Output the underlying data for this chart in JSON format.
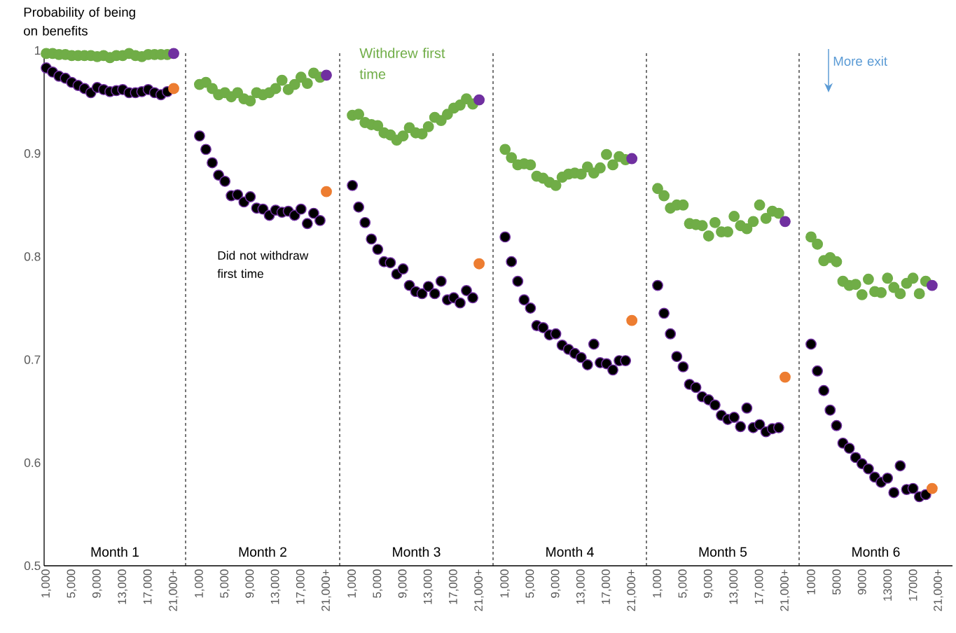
{
  "chart_data": [
    {
      "type": "scatter",
      "title": "Month 1",
      "ylabel": "Probability of being on benefits",
      "marker": "circle",
      "categories": [
        "1,000",
        null,
        null,
        null,
        "5,000",
        null,
        null,
        null,
        "9,000",
        null,
        null,
        null,
        "13,000",
        null,
        null,
        null,
        "17,000",
        null,
        null,
        null,
        "21,000+"
      ],
      "ylim": [
        0.5,
        1
      ],
      "yticks": [
        0.5,
        0.6,
        0.7,
        0.8,
        0.9,
        1
      ],
      "series": [
        {
          "values": [
            0.997,
            0.997,
            0.996,
            0.996,
            0.995,
            0.995,
            0.995,
            0.995,
            0.994,
            0.995,
            0.993,
            0.995,
            0.995,
            0.997,
            0.995,
            0.994,
            0.996,
            0.996,
            0.996,
            0.996,
            0.997
          ],
          "colors": [
            "#70ad47",
            "#70ad47",
            "#70ad47",
            "#70ad47",
            "#70ad47",
            "#70ad47",
            "#70ad47",
            "#70ad47",
            "#70ad47",
            "#70ad47",
            "#70ad47",
            "#70ad47",
            "#70ad47",
            "#70ad47",
            "#70ad47",
            "#70ad47",
            "#70ad47",
            "#70ad47",
            "#70ad47",
            "#70ad47",
            "#7030a0"
          ]
        },
        {
          "values": [
            0.983,
            0.979,
            0.975,
            0.973,
            0.969,
            0.966,
            0.963,
            0.959,
            0.964,
            0.962,
            0.96,
            0.961,
            0.962,
            0.959,
            0.959,
            0.96,
            0.962,
            0.959,
            0.957,
            0.96,
            0.963
          ],
          "colors": [
            "#000000",
            "#000000",
            "#000000",
            "#000000",
            "#000000",
            "#000000",
            "#000000",
            "#000000",
            "#000000",
            "#000000",
            "#000000",
            "#000000",
            "#000000",
            "#000000",
            "#000000",
            "#000000",
            "#000000",
            "#000000",
            "#000000",
            "#000000",
            "#ed7d31"
          ]
        }
      ]
    },
    {
      "type": "scatter",
      "title": "Month 2",
      "marker": "circle",
      "tick_labels": "x",
      "annotations": [
        "Did not withdraw first time"
      ],
      "categories": [
        "1,000",
        null,
        null,
        null,
        "5,000",
        null,
        null,
        null,
        "9,000",
        null,
        null,
        null,
        "13,000",
        null,
        null,
        null,
        "17,000",
        null,
        null,
        null,
        "21,000+"
      ],
      "ylim": [
        0.5,
        1
      ],
      "yticks": [
        0.5,
        0.6,
        0.7,
        0.8,
        0.9,
        1
      ],
      "series": [
        {
          "values": [
            0.967,
            0.969,
            0.963,
            0.957,
            0.959,
            0.955,
            0.959,
            0.953,
            0.951,
            0.959,
            0.957,
            0.959,
            0.963,
            0.971,
            0.962,
            0.967,
            0.974,
            0.968,
            0.978,
            0.974,
            0.976
          ],
          "colors": [
            "#70ad47",
            "#70ad47",
            "#70ad47",
            "#70ad47",
            "#70ad47",
            "#70ad47",
            "#70ad47",
            "#70ad47",
            "#70ad47",
            "#70ad47",
            "#70ad47",
            "#70ad47",
            "#70ad47",
            "#70ad47",
            "#70ad47",
            "#70ad47",
            "#70ad47",
            "#70ad47",
            "#70ad47",
            "#70ad47",
            "#7030a0"
          ]
        },
        {
          "values": [
            0.917,
            0.904,
            0.891,
            0.879,
            0.873,
            0.859,
            0.86,
            0.853,
            0.858,
            0.847,
            0.846,
            0.84,
            0.845,
            0.843,
            0.844,
            0.84,
            0.846,
            0.832,
            0.842,
            0.835,
            0.863
          ],
          "colors": [
            "#000000",
            "#000000",
            "#000000",
            "#000000",
            "#000000",
            "#000000",
            "#000000",
            "#000000",
            "#000000",
            "#000000",
            "#000000",
            "#000000",
            "#000000",
            "#000000",
            "#000000",
            "#000000",
            "#000000",
            "#000000",
            "#000000",
            "#000000",
            "#ed7d31"
          ]
        }
      ]
    },
    {
      "type": "scatter",
      "title": "Month 3",
      "marker": "circle",
      "tick_labels": "x",
      "annotations": [
        "Withdrew first time"
      ],
      "categories": [
        "1,000",
        null,
        null,
        null,
        "5,000",
        null,
        null,
        null,
        "9,000",
        null,
        null,
        null,
        "13,000",
        null,
        null,
        null,
        "17,000",
        null,
        null,
        null,
        "21,000+"
      ],
      "ylim": [
        0.5,
        1
      ],
      "yticks": [
        0.5,
        0.6,
        0.7,
        0.8,
        0.9,
        1
      ],
      "series": [
        {
          "values": [
            0.937,
            0.938,
            0.93,
            0.928,
            0.927,
            0.92,
            0.918,
            0.913,
            0.917,
            0.925,
            0.92,
            0.919,
            0.926,
            0.935,
            0.932,
            0.938,
            0.944,
            0.947,
            0.953,
            0.948,
            0.952
          ],
          "colors": [
            "#70ad47",
            "#70ad47",
            "#70ad47",
            "#70ad47",
            "#70ad47",
            "#70ad47",
            "#70ad47",
            "#70ad47",
            "#70ad47",
            "#70ad47",
            "#70ad47",
            "#70ad47",
            "#70ad47",
            "#70ad47",
            "#70ad47",
            "#70ad47",
            "#70ad47",
            "#70ad47",
            "#70ad47",
            "#70ad47",
            "#7030a0"
          ]
        },
        {
          "values": [
            0.869,
            0.848,
            0.833,
            0.817,
            0.807,
            0.795,
            0.794,
            0.783,
            0.788,
            0.772,
            0.766,
            0.764,
            0.771,
            0.764,
            0.776,
            0.758,
            0.76,
            0.755,
            0.767,
            0.76,
            0.793
          ],
          "colors": [
            "#000000",
            "#000000",
            "#000000",
            "#000000",
            "#000000",
            "#000000",
            "#000000",
            "#000000",
            "#000000",
            "#000000",
            "#000000",
            "#000000",
            "#000000",
            "#000000",
            "#000000",
            "#000000",
            "#000000",
            "#000000",
            "#000000",
            "#000000",
            "#ed7d31"
          ]
        }
      ]
    },
    {
      "type": "scatter",
      "title": "Month 4",
      "marker": "circle",
      "tick_labels": "x",
      "categories": [
        "1,000",
        null,
        null,
        null,
        "5,000",
        null,
        null,
        null,
        "9,000",
        null,
        null,
        null,
        "13,000",
        null,
        null,
        null,
        "17,000",
        null,
        null,
        null,
        "21,000+"
      ],
      "ylim": [
        0.5,
        1
      ],
      "yticks": [
        0.5,
        0.6,
        0.7,
        0.8,
        0.9,
        1
      ],
      "series": [
        {
          "values": [
            0.904,
            0.896,
            0.889,
            0.89,
            0.889,
            0.878,
            0.876,
            0.872,
            0.869,
            0.877,
            0.88,
            0.881,
            0.88,
            0.887,
            0.881,
            0.886,
            0.899,
            0.889,
            0.897,
            0.894,
            0.895
          ],
          "colors": [
            "#70ad47",
            "#70ad47",
            "#70ad47",
            "#70ad47",
            "#70ad47",
            "#70ad47",
            "#70ad47",
            "#70ad47",
            "#70ad47",
            "#70ad47",
            "#70ad47",
            "#70ad47",
            "#70ad47",
            "#70ad47",
            "#70ad47",
            "#70ad47",
            "#70ad47",
            "#70ad47",
            "#70ad47",
            "#70ad47",
            "#7030a0"
          ]
        },
        {
          "values": [
            0.819,
            0.795,
            0.776,
            0.758,
            0.75,
            0.733,
            0.731,
            0.724,
            0.725,
            0.714,
            0.71,
            0.706,
            0.702,
            0.695,
            0.715,
            0.697,
            0.696,
            0.69,
            0.699,
            0.699,
            0.738
          ],
          "colors": [
            "#000000",
            "#000000",
            "#000000",
            "#000000",
            "#000000",
            "#000000",
            "#000000",
            "#000000",
            "#000000",
            "#000000",
            "#000000",
            "#000000",
            "#000000",
            "#000000",
            "#000000",
            "#000000",
            "#000000",
            "#000000",
            "#000000",
            "#000000",
            "#ed7d31"
          ]
        }
      ]
    },
    {
      "type": "scatter",
      "title": "Month 5",
      "marker": "circle",
      "tick_labels": "x",
      "categories": [
        "1,000",
        null,
        null,
        null,
        "5,000",
        null,
        null,
        null,
        "9,000",
        null,
        null,
        null,
        "13,000",
        null,
        null,
        null,
        "17,000",
        null,
        null,
        null,
        "21,000+"
      ],
      "ylim": [
        0.5,
        1
      ],
      "yticks": [
        0.5,
        0.6,
        0.7,
        0.8,
        0.9,
        1
      ],
      "series": [
        {
          "values": [
            0.866,
            0.859,
            0.847,
            0.85,
            0.85,
            0.832,
            0.831,
            0.83,
            0.82,
            0.833,
            0.824,
            0.824,
            0.839,
            0.83,
            0.827,
            0.834,
            0.85,
            0.837,
            0.844,
            0.842,
            0.834
          ],
          "colors": [
            "#70ad47",
            "#70ad47",
            "#70ad47",
            "#70ad47",
            "#70ad47",
            "#70ad47",
            "#70ad47",
            "#70ad47",
            "#70ad47",
            "#70ad47",
            "#70ad47",
            "#70ad47",
            "#70ad47",
            "#70ad47",
            "#70ad47",
            "#70ad47",
            "#70ad47",
            "#70ad47",
            "#70ad47",
            "#70ad47",
            "#7030a0"
          ]
        },
        {
          "values": [
            0.772,
            0.745,
            0.725,
            0.703,
            0.693,
            0.676,
            0.673,
            0.664,
            0.661,
            0.656,
            0.646,
            0.642,
            0.644,
            0.635,
            0.653,
            0.634,
            0.637,
            0.63,
            0.633,
            0.634,
            0.683
          ],
          "colors": [
            "#000000",
            "#000000",
            "#000000",
            "#000000",
            "#000000",
            "#000000",
            "#000000",
            "#000000",
            "#000000",
            "#000000",
            "#000000",
            "#000000",
            "#000000",
            "#000000",
            "#000000",
            "#000000",
            "#000000",
            "#000000",
            "#000000",
            "#000000",
            "#ed7d31"
          ]
        }
      ]
    },
    {
      "type": "scatter",
      "title": "Month 6",
      "marker": "circle",
      "tick_labels": "x",
      "annotations": [
        "More exit"
      ],
      "categories": [
        "1000",
        null,
        null,
        null,
        "5000",
        null,
        null,
        null,
        "9000",
        null,
        null,
        null,
        "13000",
        null,
        null,
        null,
        "17000",
        null,
        null,
        null,
        "21,000+"
      ],
      "ylim": [
        0.5,
        1
      ],
      "yticks": [
        0.5,
        0.6,
        0.7,
        0.8,
        0.9,
        1
      ],
      "series": [
        {
          "values": [
            0.819,
            0.812,
            0.796,
            0.799,
            0.795,
            0.776,
            0.772,
            0.773,
            0.763,
            0.778,
            0.766,
            0.765,
            0.779,
            0.77,
            0.764,
            0.774,
            0.779,
            0.764,
            0.776,
            0.772,
            null
          ],
          "colors": [
            "#70ad47",
            "#70ad47",
            "#70ad47",
            "#70ad47",
            "#70ad47",
            "#70ad47",
            "#70ad47",
            "#70ad47",
            "#70ad47",
            "#70ad47",
            "#70ad47",
            "#70ad47",
            "#70ad47",
            "#70ad47",
            "#70ad47",
            "#70ad47",
            "#70ad47",
            "#70ad47",
            "#70ad47",
            "#7030a0",
            "#70ad47"
          ]
        },
        {
          "values": [
            0.715,
            0.689,
            0.67,
            0.651,
            0.636,
            0.619,
            0.614,
            0.605,
            0.599,
            0.594,
            0.586,
            0.581,
            0.585,
            0.571,
            0.597,
            0.574,
            0.575,
            0.567,
            0.569,
            0.575,
            null
          ],
          "colors": [
            "#000000",
            "#000000",
            "#000000",
            "#000000",
            "#000000",
            "#000000",
            "#000000",
            "#000000",
            "#000000",
            "#000000",
            "#000000",
            "#000000",
            "#000000",
            "#000000",
            "#000000",
            "#000000",
            "#000000",
            "#000000",
            "#000000",
            "#ed7d31",
            "#000000"
          ]
        }
      ]
    }
  ]
}
